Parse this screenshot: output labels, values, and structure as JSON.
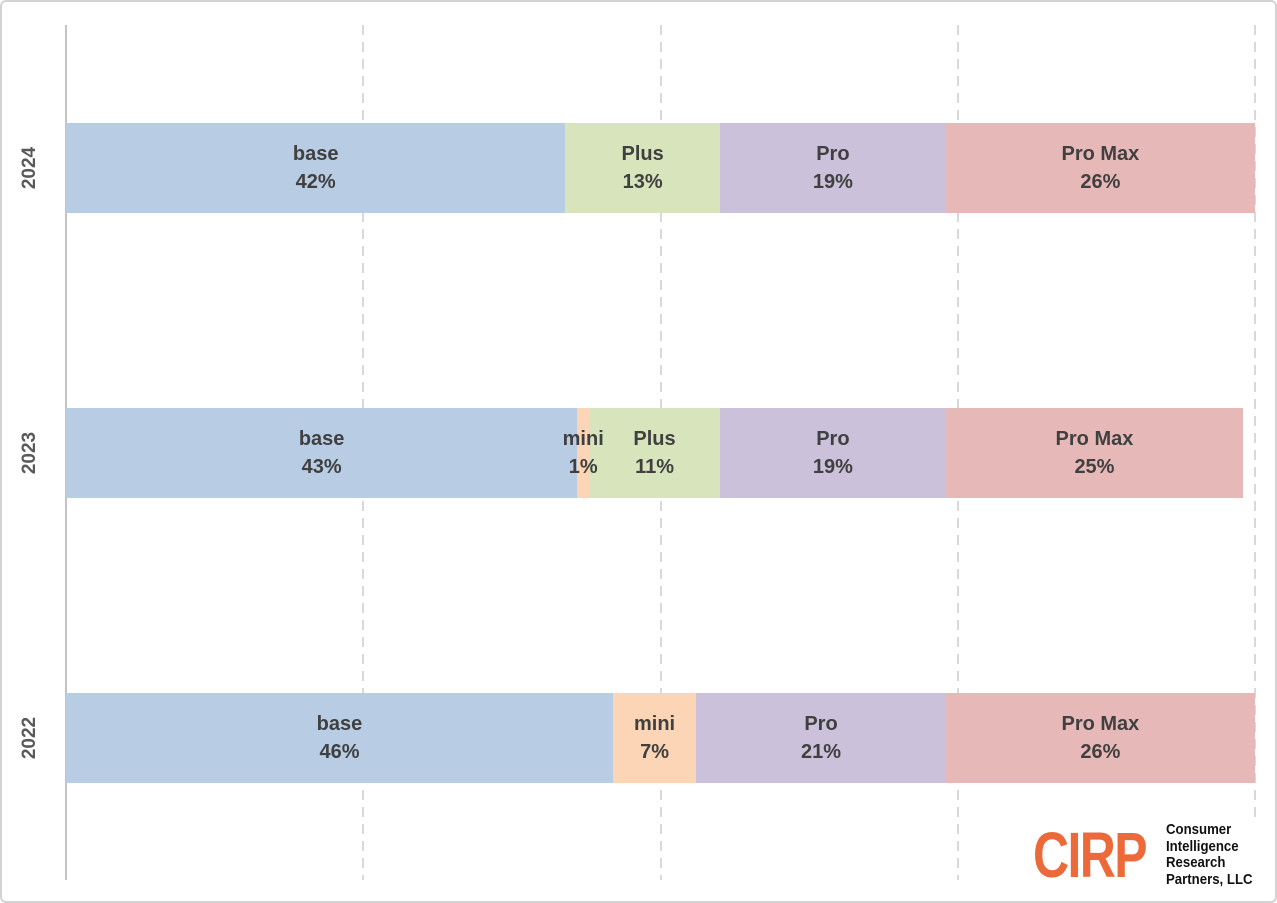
{
  "chart_data": {
    "type": "bar",
    "orientation": "horizontal",
    "stacked": true,
    "title": "",
    "xlabel": "",
    "ylabel": "",
    "xlim": [
      0,
      100
    ],
    "gridlines_pct": [
      25,
      50,
      75,
      100
    ],
    "grid": "dashed-vertical",
    "legend": "none",
    "categories": [
      "2024",
      "2023",
      "2022"
    ],
    "colors": {
      "base": "#b8cce4",
      "mini": "#fbd5b5",
      "Plus": "#d7e4bc",
      "Pro": "#ccc1da",
      "Pro Max": "#e6b8b7"
    },
    "rows": [
      {
        "category": "2024",
        "segments": [
          {
            "name": "base",
            "value": 42
          },
          {
            "name": "Plus",
            "value": 13
          },
          {
            "name": "Pro",
            "value": 19
          },
          {
            "name": "Pro Max",
            "value": 26
          }
        ]
      },
      {
        "category": "2023",
        "segments": [
          {
            "name": "base",
            "value": 43
          },
          {
            "name": "mini",
            "value": 1
          },
          {
            "name": "Plus",
            "value": 11
          },
          {
            "name": "Pro",
            "value": 19
          },
          {
            "name": "Pro Max",
            "value": 25
          }
        ]
      },
      {
        "category": "2022",
        "segments": [
          {
            "name": "base",
            "value": 46
          },
          {
            "name": "mini",
            "value": 7
          },
          {
            "name": "Pro",
            "value": 21
          },
          {
            "name": "Pro Max",
            "value": 26
          }
        ]
      }
    ],
    "value_suffix": "%"
  },
  "style_colors": {
    "grid": "#d9d9d9",
    "axis": "#c3c3c3",
    "segment_label": "#404040",
    "category_label": "#595959",
    "frame_border": "#d3d3d3"
  },
  "logo": {
    "acronym": "CIRP",
    "acronym_color": "#ec6a39",
    "lines": [
      "Consumer",
      "Intelligence",
      "Research",
      "Partners, LLC"
    ]
  }
}
